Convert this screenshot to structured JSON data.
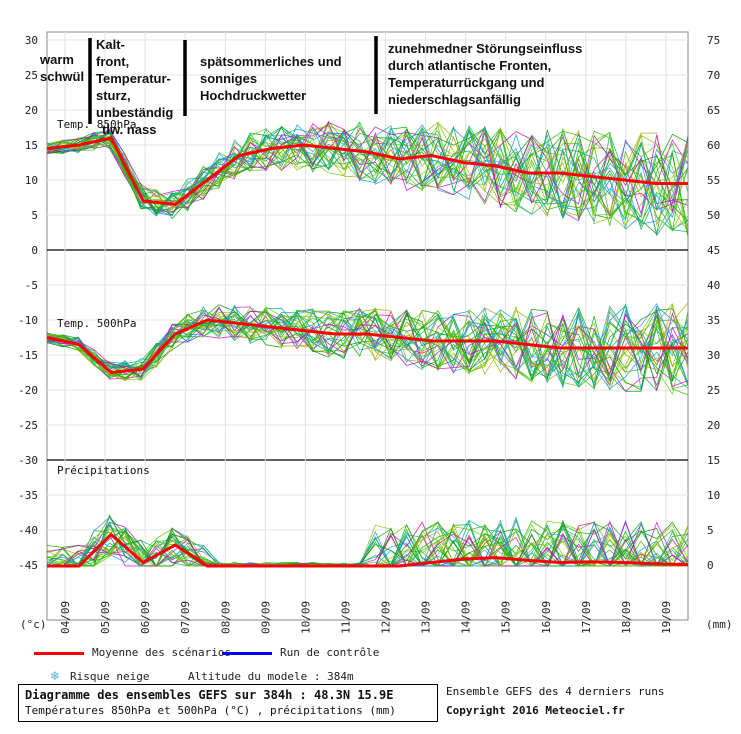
{
  "chart_data": {
    "type": "line",
    "x_dates": [
      "04/09",
      "05/09",
      "06/09",
      "07/09",
      "08/09",
      "09/09",
      "10/09",
      "11/09",
      "12/09",
      "13/09",
      "14/09",
      "15/09",
      "16/09",
      "17/09",
      "18/09",
      "19/09"
    ],
    "left_ticks_top": [
      "30",
      "25",
      "20",
      "15",
      "10",
      "5",
      "0"
    ],
    "right_ticks_top": [
      "75",
      "70",
      "65",
      "60",
      "55",
      "50",
      "45"
    ],
    "left_ticks_mid": [
      "-5",
      "-10",
      "-15",
      "-20",
      "-25"
    ],
    "right_ticks_mid": [
      "40",
      "35",
      "30",
      "25",
      "20"
    ],
    "left_ticks_bot": [
      "-30",
      "-35",
      "-40",
      "-45"
    ],
    "right_ticks_bot": [
      "15",
      "10",
      "5",
      "0"
    ],
    "left_unit": "(°c)",
    "right_unit": "(mm)",
    "panel_labels": {
      "t850": "Temp. 850hPa",
      "t500": "Temp. 500hPa",
      "precip": "Précipitations"
    },
    "mean_t850": [
      14.5,
      15,
      16,
      7,
      6.5,
      10,
      13.5,
      14.5,
      15,
      14.5,
      14,
      13,
      13.5,
      12.5,
      12,
      11,
      11,
      10.5,
      10,
      9.5,
      9.5
    ],
    "mean_t500": [
      -12.5,
      -13.5,
      -17.5,
      -17,
      -12,
      -10,
      -10.5,
      -11,
      -11.5,
      -12,
      -12,
      -12.5,
      -13,
      -13,
      -13,
      -13.5,
      -14,
      -14,
      -14,
      -14,
      -14
    ],
    "mean_precip": [
      0,
      0,
      4.5,
      0.5,
      3,
      0,
      0,
      0,
      0,
      0,
      0,
      0,
      0.5,
      1,
      1.2,
      0.8,
      0.5,
      0.6,
      0.5,
      0.3,
      0.2
    ],
    "annotations": [
      "warm\nschwül",
      "Kalt-\nfront,\nTemperatur-\nsturz,\nunbeständig\ntlw. nass",
      "spätsommerliches und\nsonniges\nHochdruckwetter",
      "zunehmedner Störungseinfluss\ndurch atlantische Fronten,\nTemperaturrückgang und\nniederschlagsanfällig"
    ],
    "colors": {
      "mean": "#ff0000",
      "control": "#0000ff",
      "ensemble": [
        "#00aa00",
        "#33bb00",
        "#66cc00",
        "#cc00cc",
        "#00aaaa",
        "#aaaa00",
        "#1e90ff",
        "#009900"
      ]
    }
  },
  "legend": {
    "mean_label": "Moyenne des scénarios",
    "control_label": "Run de contrôle",
    "snow_label": "Risque neige",
    "altitude_label": "Altitude du modele : 384m"
  },
  "footer": {
    "title": "Diagramme des ensembles GEFS sur 384h : 48.3N 15.9E",
    "subtitle": "Températures 850hPa et 500hPa (°C) , précipitations (mm)",
    "runs": "Ensemble GEFS des 4 derniers runs",
    "copyright": "Copyright 2016 Meteociel.fr"
  }
}
